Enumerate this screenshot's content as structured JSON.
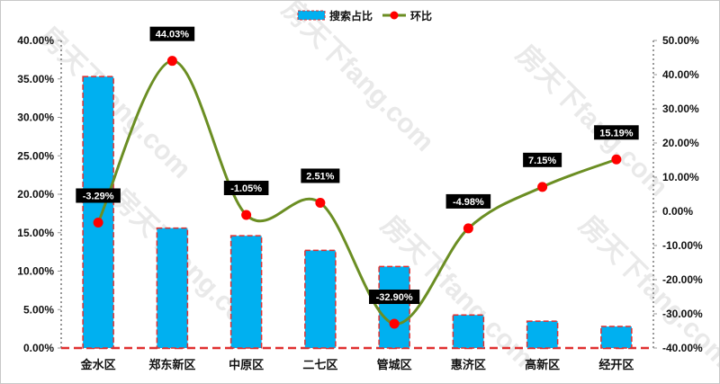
{
  "watermark": "房天下fang.com",
  "chart_data": {
    "type": "bar+line",
    "categories": [
      "金水区",
      "郑东新区",
      "中原区",
      "二七区",
      "管城区",
      "惠济区",
      "高新区",
      "经开区"
    ],
    "series": [
      {
        "name": "搜索占比",
        "type": "bar",
        "axis": "left",
        "color": "#00b0f0",
        "border_color": "#e03030",
        "values": [
          35.3,
          15.6,
          14.6,
          12.7,
          10.6,
          4.3,
          3.5,
          2.8
        ]
      },
      {
        "name": "环比",
        "type": "line",
        "axis": "right",
        "color": "#6b8e23",
        "marker_color": "#ff0000",
        "values": [
          -3.29,
          44.03,
          -1.05,
          2.51,
          -32.9,
          -4.98,
          7.15,
          15.19
        ],
        "labels": [
          "-3.29%",
          "44.03%",
          "-1.05%",
          "2.51%",
          "-32.90%",
          "-4.98%",
          "7.15%",
          "15.19%"
        ]
      }
    ],
    "y_left": {
      "min": 0,
      "max": 40,
      "step": 5,
      "ticks": [
        "0.00%",
        "5.00%",
        "10.00%",
        "15.00%",
        "20.00%",
        "25.00%",
        "30.00%",
        "35.00%",
        "40.00%"
      ]
    },
    "y_right": {
      "min": -40,
      "max": 50,
      "step": 10,
      "ticks": [
        "-40.00%",
        "-30.00%",
        "-20.00%",
        "-10.00%",
        "0.00%",
        "10.00%",
        "20.00%",
        "30.00%",
        "40.00%",
        "50.00%"
      ]
    },
    "legend_position": "top",
    "grid": false
  }
}
